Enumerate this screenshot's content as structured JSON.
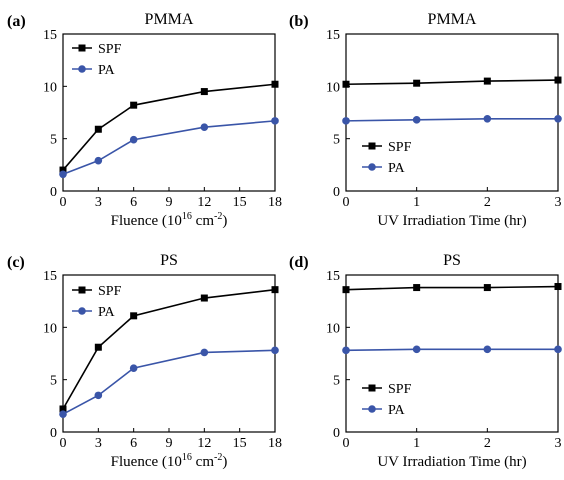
{
  "colors": {
    "SPF": "#000000",
    "PA": "#3a55a8"
  },
  "chart_data": [
    {
      "type": "line",
      "panel_label": "(a)",
      "title": "PMMA",
      "xlabel": "Fluence (10",
      "xlabel_sup": "16",
      "xlabel_unit": " cm",
      "xlabel_unit_sup": "-2",
      "xlabel_close": ")",
      "ylabel": "",
      "x": [
        0,
        3,
        6,
        12,
        18
      ],
      "xlim": [
        0,
        18
      ],
      "ylim": [
        0,
        15
      ],
      "xticks": [
        0,
        3,
        6,
        9,
        12,
        15,
        18
      ],
      "yticks": [
        0,
        5,
        10,
        15
      ],
      "legend": "top-left",
      "series": [
        {
          "name": "SPF",
          "marker": "square",
          "values": [
            2.0,
            5.9,
            8.2,
            9.5,
            10.2
          ]
        },
        {
          "name": "PA",
          "marker": "circle",
          "values": [
            1.6,
            2.9,
            4.9,
            6.1,
            6.7
          ]
        }
      ]
    },
    {
      "type": "line",
      "panel_label": "(b)",
      "title": "PMMA",
      "xlabel": "UV Irradiation Time (hr)",
      "ylabel": "",
      "x": [
        0,
        1,
        2,
        3
      ],
      "xlim": [
        0,
        3
      ],
      "ylim": [
        0,
        15
      ],
      "xticks": [
        0,
        1,
        2,
        3
      ],
      "yticks": [
        0,
        5,
        10,
        15
      ],
      "legend": "bottom-left",
      "series": [
        {
          "name": "SPF",
          "marker": "square",
          "values": [
            10.2,
            10.3,
            10.5,
            10.6
          ]
        },
        {
          "name": "PA",
          "marker": "circle",
          "values": [
            6.7,
            6.8,
            6.9,
            6.9
          ]
        }
      ]
    },
    {
      "type": "line",
      "panel_label": "(c)",
      "title": "PS",
      "xlabel": "Fluence (10",
      "xlabel_sup": "16",
      "xlabel_unit": " cm",
      "xlabel_unit_sup": "-2",
      "xlabel_close": ")",
      "ylabel": "",
      "x": [
        0,
        3,
        6,
        12,
        18
      ],
      "xlim": [
        0,
        18
      ],
      "ylim": [
        0,
        15
      ],
      "xticks": [
        0,
        3,
        6,
        9,
        12,
        15,
        18
      ],
      "yticks": [
        0,
        5,
        10,
        15
      ],
      "legend": "top-left",
      "series": [
        {
          "name": "SPF",
          "marker": "square",
          "values": [
            2.2,
            8.1,
            11.1,
            12.8,
            13.6
          ]
        },
        {
          "name": "PA",
          "marker": "circle",
          "values": [
            1.7,
            3.5,
            6.1,
            7.6,
            7.8
          ]
        }
      ]
    },
    {
      "type": "line",
      "panel_label": "(d)",
      "title": "PS",
      "xlabel": "UV Irradiation Time (hr)",
      "ylabel": "",
      "x": [
        0,
        1,
        2,
        3
      ],
      "xlim": [
        0,
        3
      ],
      "ylim": [
        0,
        15
      ],
      "xticks": [
        0,
        1,
        2,
        3
      ],
      "yticks": [
        0,
        5,
        10,
        15
      ],
      "legend": "bottom-left",
      "series": [
        {
          "name": "SPF",
          "marker": "square",
          "values": [
            13.6,
            13.8,
            13.8,
            13.9
          ]
        },
        {
          "name": "PA",
          "marker": "circle",
          "values": [
            7.8,
            7.9,
            7.9,
            7.9
          ]
        }
      ]
    }
  ]
}
